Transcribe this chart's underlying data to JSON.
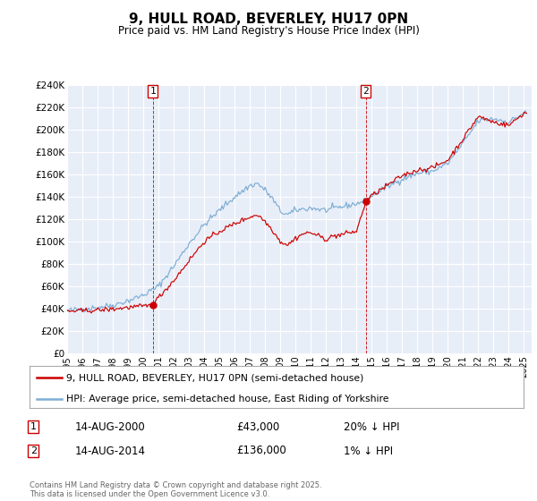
{
  "title": "9, HULL ROAD, BEVERLEY, HU17 0PN",
  "subtitle": "Price paid vs. HM Land Registry's House Price Index (HPI)",
  "ylim": [
    0,
    240000
  ],
  "yticks": [
    0,
    20000,
    40000,
    60000,
    80000,
    100000,
    120000,
    140000,
    160000,
    180000,
    200000,
    220000,
    240000
  ],
  "ytick_labels": [
    "£0",
    "£20K",
    "£40K",
    "£60K",
    "£80K",
    "£100K",
    "£120K",
    "£140K",
    "£160K",
    "£180K",
    "£200K",
    "£220K",
    "£240K"
  ],
  "background_color": "#ffffff",
  "plot_bg_color": "#e8eef8",
  "grid_color": "#ffffff",
  "red_line_color": "#cc0000",
  "blue_line_color": "#7dadd4",
  "sale1_date": 2000.619,
  "sale1_price": 43000,
  "sale2_date": 2014.619,
  "sale2_price": 136000,
  "legend_red": "9, HULL ROAD, BEVERLEY, HU17 0PN (semi-detached house)",
  "legend_blue": "HPI: Average price, semi-detached house, East Riding of Yorkshire",
  "annotation1": [
    "1",
    "14-AUG-2000",
    "£43,000",
    "20% ↓ HPI"
  ],
  "annotation2": [
    "2",
    "14-AUG-2014",
    "£136,000",
    "1% ↓ HPI"
  ],
  "copyright": "Contains HM Land Registry data © Crown copyright and database right 2025.\nThis data is licensed under the Open Government Licence v3.0."
}
